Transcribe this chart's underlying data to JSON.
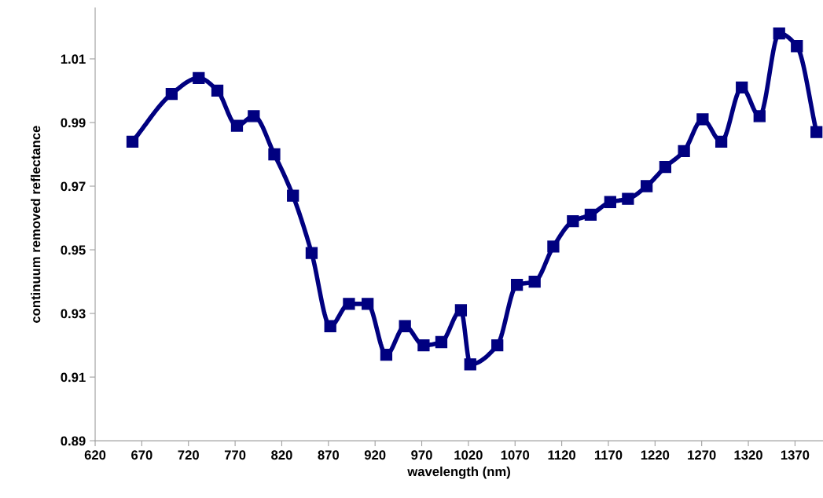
{
  "chart_data": {
    "type": "line",
    "xlabel": "wavelength (nm)",
    "ylabel": "continuum removed reflectance",
    "x": [
      660,
      702,
      731,
      751,
      772,
      790,
      812,
      832,
      852,
      872,
      892,
      912,
      932,
      952,
      972,
      991,
      1012,
      1022,
      1051,
      1072,
      1091,
      1111,
      1132,
      1151,
      1172,
      1191,
      1211,
      1231,
      1251,
      1271,
      1291,
      1313,
      1332,
      1353,
      1372,
      1393
    ],
    "series": [
      {
        "color": "#000080",
        "values": [
          0.984,
          0.999,
          1.004,
          1.0,
          0.989,
          0.992,
          0.98,
          0.967,
          0.949,
          0.926,
          0.933,
          0.933,
          0.917,
          0.926,
          0.92,
          0.921,
          0.931,
          0.914,
          0.92,
          0.939,
          0.94,
          0.951,
          0.959,
          0.961,
          0.965,
          0.966,
          0.97,
          0.976,
          0.981,
          0.991,
          0.984,
          1.001,
          0.992,
          1.018,
          1.014,
          0.987
        ]
      }
    ],
    "xlim": [
      620,
      1400
    ],
    "xticks": [
      620,
      670,
      720,
      770,
      820,
      870,
      920,
      970,
      1020,
      1070,
      1120,
      1170,
      1220,
      1270,
      1320,
      1370
    ],
    "ylim": [
      0.89,
      1.026
    ],
    "yticks": [
      0.89,
      0.91,
      0.93,
      0.95,
      0.97,
      0.99,
      1.01
    ],
    "grid": false,
    "legend": false,
    "marker": "square",
    "line_style": "solid"
  }
}
